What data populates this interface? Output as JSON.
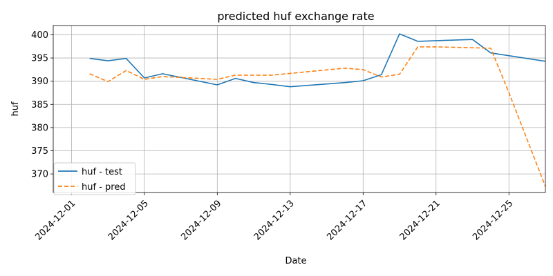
{
  "chart_data": {
    "type": "line",
    "title": "predicted huf exchange rate",
    "xlabel": "Date",
    "ylabel": "huf",
    "x_ticks": [
      "2024-12-01",
      "2024-12-05",
      "2024-12-09",
      "2024-12-13",
      "2024-12-17",
      "2024-12-21",
      "2024-12-25"
    ],
    "y_ticks": [
      370,
      375,
      380,
      385,
      390,
      395,
      400
    ],
    "xlim": [
      "2024-11-30",
      "2024-12-27"
    ],
    "ylim": [
      366,
      402
    ],
    "grid": true,
    "legend_position": "lower-left",
    "series": [
      {
        "name": "huf - test",
        "color": "#1f77b4",
        "style": "solid",
        "points": [
          [
            "2024-12-02",
            394.9
          ],
          [
            "2024-12-03",
            394.4
          ],
          [
            "2024-12-04",
            394.9
          ],
          [
            "2024-12-05",
            390.7
          ],
          [
            "2024-12-06",
            391.6
          ],
          [
            "2024-12-09",
            389.2
          ],
          [
            "2024-12-10",
            390.6
          ],
          [
            "2024-12-11",
            389.7
          ],
          [
            "2024-12-12",
            389.3
          ],
          [
            "2024-12-13",
            388.8
          ],
          [
            "2024-12-16",
            389.7
          ],
          [
            "2024-12-17",
            390.1
          ],
          [
            "2024-12-18",
            391.4
          ],
          [
            "2024-12-19",
            400.2
          ],
          [
            "2024-12-20",
            398.6
          ],
          [
            "2024-12-23",
            399.0
          ],
          [
            "2024-12-24",
            396.1
          ],
          [
            "2024-12-27",
            394.3
          ]
        ]
      },
      {
        "name": "huf - pred",
        "color": "#ff7f0e",
        "style": "dashed",
        "points": [
          [
            "2024-12-02",
            391.6
          ],
          [
            "2024-12-03",
            389.9
          ],
          [
            "2024-12-04",
            392.3
          ],
          [
            "2024-12-05",
            390.4
          ],
          [
            "2024-12-06",
            391.0
          ],
          [
            "2024-12-09",
            390.4
          ],
          [
            "2024-12-10",
            391.3
          ],
          [
            "2024-12-12",
            391.3
          ],
          [
            "2024-12-16",
            392.8
          ],
          [
            "2024-12-17",
            392.5
          ],
          [
            "2024-12-18",
            390.9
          ],
          [
            "2024-12-19",
            391.5
          ],
          [
            "2024-12-20",
            397.4
          ],
          [
            "2024-12-21",
            397.4
          ],
          [
            "2024-12-24",
            397.1
          ],
          [
            "2024-12-25",
            387.5
          ],
          [
            "2024-12-27",
            367.3
          ]
        ]
      }
    ]
  }
}
